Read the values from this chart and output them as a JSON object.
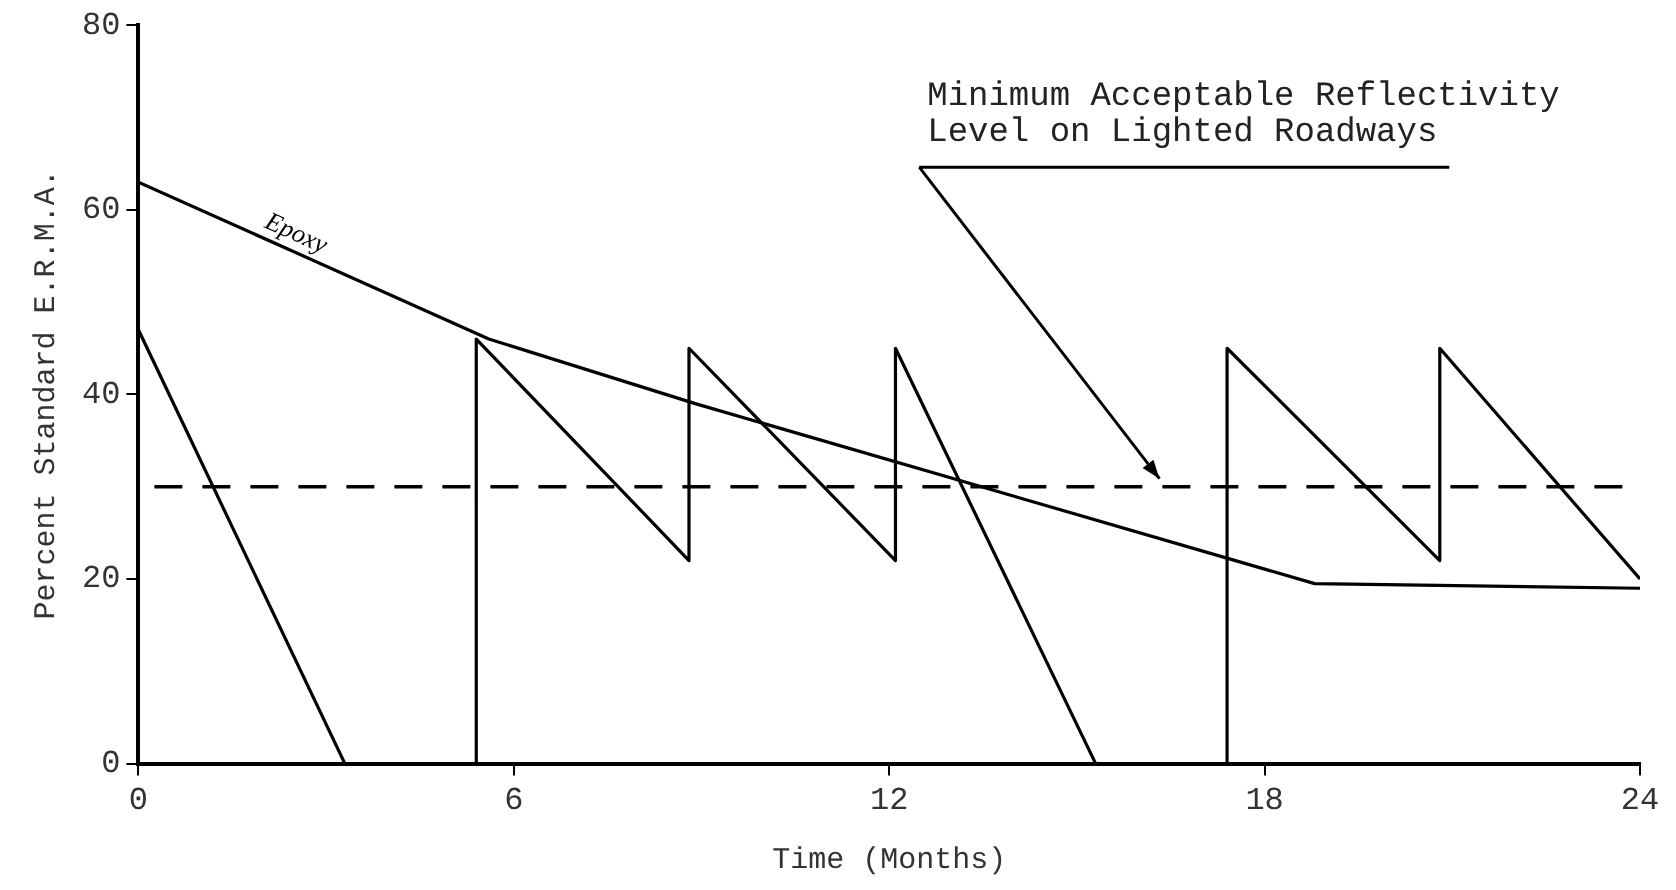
{
  "chart_data": {
    "type": "line",
    "xlabel": "Time (Months)",
    "ylabel": "Percent Standard E.R.M.A.",
    "xlim": [
      0,
      24
    ],
    "xticks": [
      0,
      6,
      12,
      18,
      24
    ],
    "ylim": [
      0,
      80
    ],
    "yticks": [
      0,
      20,
      40,
      60,
      80
    ],
    "grid": false,
    "legend": false,
    "marker": "none",
    "line_style": "solid",
    "series": [
      {
        "name": "Epoxy",
        "color": "#000000",
        "x": [
          0,
          5.6,
          8.9,
          18.8,
          24
        ],
        "values": [
          63,
          46,
          39,
          19.5,
          19
        ]
      },
      {
        "color": "#000000",
        "x": [
          0,
          3.3
        ],
        "values": [
          47,
          0
        ]
      },
      {
        "color": "#000000",
        "x": [
          5.4,
          5.4,
          8.8,
          8.8,
          12.1,
          12.1,
          15.3
        ],
        "values": [
          0,
          46,
          22,
          45,
          22,
          45,
          0
        ]
      },
      {
        "color": "#000000",
        "x": [
          17.4,
          17.4,
          20.8,
          20.8,
          24
        ],
        "values": [
          0,
          45,
          22,
          45,
          20
        ]
      }
    ],
    "ref_lines": [
      {
        "axis": "y",
        "value": 30,
        "label": "Minimum Acceptable Reflectivity\nLevel on Lighted Roadways",
        "line_style": "dashed",
        "color": "#000000"
      }
    ]
  }
}
